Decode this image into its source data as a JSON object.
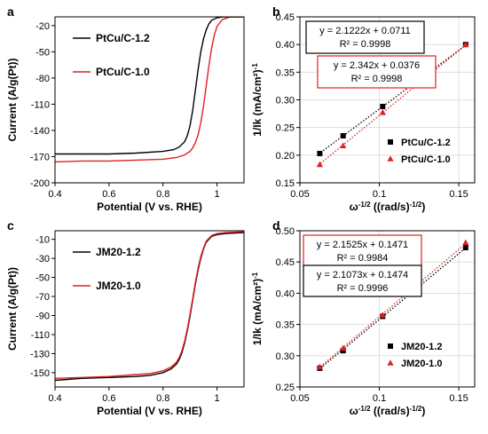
{
  "colors": {
    "series1": "#000000",
    "series2": "#e02020",
    "box2": "#e02020",
    "grid": "#d9d9d9"
  },
  "chart_data": [
    {
      "panel": "a",
      "type": "line",
      "xlabel": "Potential (V vs. RHE)",
      "ylabel": "Current (A/g(Pt))",
      "xlim": [
        0.4,
        1.1
      ],
      "ylim": [
        -200,
        -10
      ],
      "xticks": [
        0.4,
        0.6,
        0.8,
        1.0
      ],
      "xtick_labels": [
        "0.4",
        "0.6",
        "0.8",
        "1"
      ],
      "yticks": [
        -20,
        -50,
        -80,
        -110,
        -140,
        -170,
        -200
      ],
      "ytick_labels": [
        "-20",
        "-50",
        "-80",
        "-110",
        "-140",
        "-170",
        "-200"
      ],
      "grid": false,
      "legend": "top-left",
      "series": [
        {
          "name": "PtCu/C-1.2",
          "color": "series1",
          "x": [
            0.4,
            0.5,
            0.6,
            0.7,
            0.8,
            0.84,
            0.86,
            0.88,
            0.89,
            0.9,
            0.91,
            0.92,
            0.93,
            0.94,
            0.95,
            0.96,
            0.97,
            0.98,
            1.0,
            1.02,
            1.05,
            1.1
          ],
          "y": [
            -167,
            -167,
            -167,
            -166,
            -164,
            -162,
            -159,
            -153,
            -146,
            -135,
            -117,
            -94,
            -70,
            -50,
            -35,
            -25,
            -18,
            -14,
            -11,
            -10,
            -10,
            -10
          ]
        },
        {
          "name": "PtCu/C-1.0",
          "color": "series2",
          "x": [
            0.4,
            0.5,
            0.6,
            0.7,
            0.8,
            0.85,
            0.88,
            0.9,
            0.91,
            0.92,
            0.93,
            0.94,
            0.95,
            0.96,
            0.97,
            0.98,
            0.99,
            1.0,
            1.02,
            1.05,
            1.1
          ],
          "y": [
            -176,
            -175,
            -175,
            -174,
            -173,
            -171,
            -168,
            -164,
            -160,
            -154,
            -145,
            -131,
            -112,
            -89,
            -66,
            -46,
            -31,
            -21,
            -13,
            -10,
            -10
          ]
        }
      ]
    },
    {
      "panel": "b",
      "type": "scatter",
      "xlabel": "ω-1/2 ((rad/s)-1/2)",
      "ylabel": "1/Ik (mA/cm²)-1",
      "xlim": [
        0.05,
        0.16
      ],
      "ylim": [
        0.15,
        0.45
      ],
      "xticks": [
        0.05,
        0.1,
        0.15
      ],
      "xtick_labels": [
        "0.05",
        "0.1",
        "0.15"
      ],
      "yticks": [
        0.15,
        0.2,
        0.25,
        0.3,
        0.35,
        0.4,
        0.45
      ],
      "ytick_labels": [
        "0.15",
        "0.20",
        "0.25",
        "0.30",
        "0.35",
        "0.40",
        "0.45"
      ],
      "grid": true,
      "legend": "bottom-right",
      "series": [
        {
          "name": "PtCu/C-1.2",
          "color": "series1",
          "marker": "square",
          "x": [
            0.0625,
            0.0772,
            0.1021,
            0.1543
          ],
          "y": [
            0.203,
            0.235,
            0.288,
            0.4
          ],
          "fit": {
            "slope": 2.1222,
            "intercept": 0.0711
          }
        },
        {
          "name": "PtCu/C-1.0",
          "color": "series2",
          "marker": "triangle",
          "x": [
            0.0625,
            0.0772,
            0.1021,
            0.1543
          ],
          "y": [
            0.183,
            0.217,
            0.277,
            0.4
          ],
          "fit": {
            "slope": 2.342,
            "intercept": 0.0376
          }
        }
      ],
      "annotations": [
        {
          "line1": "y = 2.1222x + 0.0711",
          "line2": "R² = 0.9998",
          "color": "series1"
        },
        {
          "line1": "y = 2.342x + 0.0376",
          "line2": "R² = 0.9998",
          "color": "series2"
        }
      ]
    },
    {
      "panel": "c",
      "type": "line",
      "xlabel": "Potential (V vs. RHE)",
      "ylabel": "Current (A/g(Pt))",
      "xlim": [
        0.4,
        1.1
      ],
      "ylim": [
        -165,
        -1
      ],
      "xticks": [
        0.4,
        0.6,
        0.8,
        1.0
      ],
      "xtick_labels": [
        "0.4",
        "0.6",
        "0.8",
        "1"
      ],
      "yticks": [
        -10,
        -30,
        -50,
        -70,
        -90,
        -110,
        -130,
        -150
      ],
      "ytick_labels": [
        "-10",
        "-30",
        "-50",
        "-70",
        "-90",
        "-110",
        "-130",
        "-150"
      ],
      "grid": false,
      "legend": "top-left",
      "series": [
        {
          "name": "JM20-1.2",
          "color": "series1",
          "x": [
            0.4,
            0.5,
            0.6,
            0.7,
            0.75,
            0.8,
            0.83,
            0.85,
            0.86,
            0.87,
            0.88,
            0.89,
            0.9,
            0.91,
            0.92,
            0.93,
            0.94,
            0.95,
            0.96,
            0.98,
            1.0,
            1.03,
            1.1
          ],
          "y": [
            -158,
            -156,
            -155,
            -154,
            -153,
            -150,
            -146,
            -141,
            -136,
            -129,
            -119,
            -106,
            -91,
            -74,
            -57,
            -42,
            -30,
            -20,
            -13,
            -7,
            -5,
            -4,
            -3
          ]
        },
        {
          "name": "JM20-1.0",
          "color": "series2",
          "x": [
            0.4,
            0.5,
            0.6,
            0.7,
            0.75,
            0.8,
            0.83,
            0.85,
            0.86,
            0.87,
            0.88,
            0.89,
            0.9,
            0.91,
            0.92,
            0.93,
            0.94,
            0.95,
            0.96,
            0.98,
            1.0,
            1.03,
            1.1
          ],
          "y": [
            -156,
            -155,
            -154,
            -152,
            -151,
            -148,
            -144,
            -139,
            -134,
            -127,
            -117,
            -104,
            -89,
            -72,
            -55,
            -40,
            -28,
            -19,
            -12,
            -6,
            -4,
            -3,
            -2
          ]
        }
      ]
    },
    {
      "panel": "d",
      "type": "scatter",
      "xlabel": "ω-1/2 ((rad/s)-1/2)",
      "ylabel": "1/Ik (mA/cm²)-1",
      "xlim": [
        0.05,
        0.16
      ],
      "ylim": [
        0.25,
        0.5
      ],
      "xticks": [
        0.05,
        0.1,
        0.15
      ],
      "xtick_labels": [
        "0.05",
        "0.1",
        "0.15"
      ],
      "yticks": [
        0.25,
        0.3,
        0.35,
        0.4,
        0.45,
        0.5
      ],
      "ytick_labels": [
        "0.25",
        "0.30",
        "0.35",
        "0.40",
        "0.45",
        "0.50"
      ],
      "grid": true,
      "legend": "bottom-right",
      "series": [
        {
          "name": "JM20-1.2",
          "color": "series1",
          "marker": "square",
          "x": [
            0.0625,
            0.0772,
            0.1021,
            0.1543
          ],
          "y": [
            0.28,
            0.308,
            0.363,
            0.473
          ],
          "fit": {
            "slope": 2.1073,
            "intercept": 0.1474
          }
        },
        {
          "name": "JM20-1.0",
          "color": "series2",
          "marker": "triangle",
          "x": [
            0.0625,
            0.0772,
            0.1021,
            0.1543
          ],
          "y": [
            0.282,
            0.312,
            0.365,
            0.481
          ],
          "fit": {
            "slope": 2.1525,
            "intercept": 0.1471
          }
        }
      ],
      "annotations": [
        {
          "line1": "y = 2.1525x + 0.1471",
          "line2": "R² = 0.9984",
          "color": "series2"
        },
        {
          "line1": "y = 2.1073x + 0.1474",
          "line2": "R² = 0.9996",
          "color": "series1"
        }
      ]
    }
  ]
}
